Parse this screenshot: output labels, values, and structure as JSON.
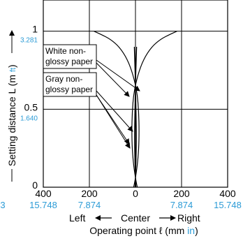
{
  "chart_data": {
    "type": "line",
    "xlabel": "Operating point ℓ (mm",
    "xlabel_unit_alt": "in",
    "xlabel_close": ")",
    "ylabel": "Setting distance L (m",
    "ylabel_unit_alt": "ft",
    "ylabel_close": ")",
    "x_direction": {
      "left": "Left",
      "center": "Center",
      "right": "Right"
    },
    "xlim": [
      -400,
      400
    ],
    "ylim": [
      0,
      1.2
    ],
    "x_ticks": [
      {
        "value": -400,
        "label": "400",
        "alt": "15.748"
      },
      {
        "value": -200,
        "label": "200",
        "alt": "7.874"
      },
      {
        "value": 0,
        "label": "0",
        "alt": ""
      },
      {
        "value": 200,
        "label": "200",
        "alt": "7.874"
      },
      {
        "value": 400,
        "label": "400",
        "alt": "15.748"
      }
    ],
    "x_left_overflow_alt": "3",
    "y_ticks": [
      {
        "value": 0,
        "label": "0",
        "alt": ""
      },
      {
        "value": 0.5,
        "label": "0.5",
        "alt": "1.640"
      },
      {
        "value": 1,
        "label": "1",
        "alt": "3.281"
      }
    ],
    "grid": true,
    "series": [
      {
        "name": "White non-glossy paper",
        "x": [
          -180,
          -150,
          -110,
          -70,
          -35,
          -10,
          8,
          14,
          16,
          14,
          8,
          0,
          -5,
          -8
        ],
        "y": [
          1.0,
          0.98,
          0.95,
          0.9,
          0.82,
          0.72,
          0.6,
          0.48,
          0.36,
          0.24,
          0.14,
          0.06,
          0.02,
          0.0
        ]
      },
      {
        "name": "White non-glossy paper",
        "x": [
          180,
          150,
          110,
          70,
          35,
          10,
          -8,
          -14,
          -16,
          -14,
          -8,
          0,
          5,
          8
        ],
        "y": [
          1.0,
          0.98,
          0.95,
          0.9,
          0.82,
          0.72,
          0.6,
          0.48,
          0.36,
          0.24,
          0.14,
          0.06,
          0.02,
          0.0
        ]
      },
      {
        "name": "Gray non-glossy paper",
        "x": [
          -5,
          -2,
          1,
          3,
          4,
          3,
          1,
          -1,
          -2
        ],
        "y": [
          0.9,
          0.75,
          0.6,
          0.45,
          0.32,
          0.2,
          0.1,
          0.03,
          0.0
        ]
      },
      {
        "name": "Gray non-glossy paper",
        "x": [
          5,
          2,
          -1,
          -3,
          -4,
          -3,
          -1,
          1,
          2
        ],
        "y": [
          0.9,
          0.75,
          0.6,
          0.45,
          0.32,
          0.2,
          0.1,
          0.03,
          0.0
        ]
      }
    ],
    "legend": [
      {
        "label_lines": [
          "White non-",
          "glossy paper"
        ]
      },
      {
        "label_lines": [
          "Gray non-",
          "glossy paper"
        ]
      }
    ]
  }
}
